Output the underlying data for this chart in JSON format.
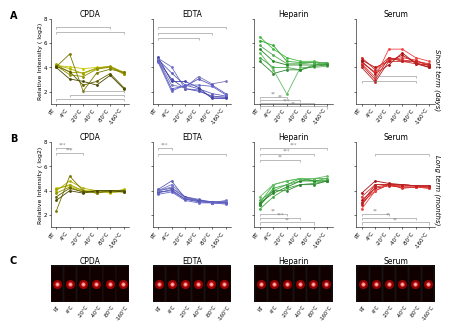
{
  "x_labels": [
    "RT",
    "4°C",
    "-20°C",
    "-40°C",
    "-80°C",
    "-160°C"
  ],
  "x_positions": [
    0,
    1,
    2,
    3,
    4,
    5
  ],
  "panel_titles": [
    "CPDA",
    "EDTA",
    "Heparin",
    "Serum"
  ],
  "ylabel": "Relative Intensity ( log2)",
  "ylim": [
    1,
    8
  ],
  "yticks": [
    2,
    4,
    6,
    8
  ],
  "cpda_A_lines": [
    [
      4.15,
      4.05,
      3.9,
      4.0,
      4.05,
      3.55
    ],
    [
      4.2,
      3.9,
      3.5,
      3.9,
      4.0,
      3.45
    ],
    [
      4.25,
      3.6,
      3.55,
      3.95,
      4.1,
      3.6
    ],
    [
      4.15,
      3.4,
      3.25,
      3.85,
      4.05,
      3.5
    ],
    [
      4.05,
      5.1,
      2.05,
      3.55,
      3.85,
      3.6
    ],
    [
      4.1,
      3.65,
      2.55,
      2.85,
      3.5,
      2.35
    ],
    [
      4.0,
      3.05,
      2.85,
      2.55,
      3.35,
      2.25
    ]
  ],
  "cpda_A_colors": [
    "#c8c800",
    "#b0b000",
    "#a0a000",
    "#909000",
    "#787800",
    "#606000",
    "#484800"
  ],
  "edta_A_lines": [
    [
      4.75,
      4.05,
      2.25,
      2.15,
      1.55,
      1.55
    ],
    [
      4.65,
      3.55,
      2.55,
      2.25,
      1.85,
      1.65
    ],
    [
      4.55,
      3.05,
      2.25,
      2.05,
      1.65,
      1.55
    ],
    [
      4.85,
      2.85,
      2.85,
      2.35,
      1.45,
      1.45
    ],
    [
      4.65,
      2.55,
      2.35,
      3.25,
      2.65,
      2.85
    ],
    [
      4.55,
      2.25,
      2.45,
      3.05,
      2.55,
      1.85
    ],
    [
      4.45,
      2.05,
      2.55,
      2.55,
      2.45,
      1.75
    ]
  ],
  "edta_A_colors": [
    "#7070cc",
    "#6060bb",
    "#5050aa",
    "#4040aa",
    "#7878bb",
    "#5858bb",
    "#6868cc"
  ],
  "heparin_A_lines": [
    [
      6.5,
      5.5,
      4.8,
      4.5,
      4.5,
      4.3
    ],
    [
      6.2,
      5.8,
      4.5,
      4.4,
      4.4,
      4.2
    ],
    [
      5.8,
      5.0,
      4.3,
      4.3,
      4.4,
      4.4
    ],
    [
      5.5,
      4.5,
      4.2,
      4.2,
      4.2,
      4.3
    ],
    [
      5.2,
      3.8,
      1.8,
      4.0,
      4.0,
      4.1
    ],
    [
      4.8,
      4.0,
      4.0,
      3.8,
      4.2,
      4.3
    ],
    [
      4.5,
      3.5,
      3.8,
      3.8,
      4.1,
      4.2
    ]
  ],
  "heparin_A_colors": [
    "#44bb44",
    "#33aa33",
    "#55aa55",
    "#228822",
    "#66bb66",
    "#44aa44",
    "#338833"
  ],
  "serum_A_lines": [
    [
      4.8,
      3.8,
      4.8,
      4.5,
      4.5,
      4.2
    ],
    [
      4.6,
      4.0,
      4.5,
      5.0,
      4.4,
      4.0
    ],
    [
      4.4,
      3.6,
      4.6,
      4.8,
      4.6,
      4.1
    ],
    [
      4.5,
      3.5,
      4.2,
      5.2,
      4.3,
      4.0
    ],
    [
      4.3,
      3.2,
      5.5,
      5.5,
      4.8,
      4.5
    ],
    [
      4.2,
      3.0,
      4.8,
      4.6,
      4.5,
      4.3
    ],
    [
      4.0,
      2.8,
      4.5,
      4.5,
      4.3,
      4.2
    ]
  ],
  "serum_A_colors": [
    "#cc2222",
    "#bb1111",
    "#dd3333",
    "#aa1111",
    "#ee4444",
    "#cc2222",
    "#bb2222"
  ],
  "cpda_B_lines": [
    [
      4.2,
      4.4,
      4.0,
      4.0,
      3.8,
      4.0
    ],
    [
      4.0,
      4.8,
      4.2,
      4.0,
      3.9,
      4.1
    ],
    [
      4.1,
      4.5,
      4.0,
      3.8,
      4.0,
      4.0
    ],
    [
      3.8,
      4.3,
      3.9,
      3.9,
      3.9,
      3.9
    ],
    [
      2.3,
      5.2,
      4.0,
      3.8,
      4.0,
      4.0
    ],
    [
      3.5,
      4.2,
      3.9,
      4.0,
      4.0,
      4.0
    ],
    [
      3.2,
      4.0,
      3.8,
      4.0,
      4.0,
      3.9
    ]
  ],
  "cpda_B_colors": [
    "#c8c800",
    "#b0b000",
    "#a0a000",
    "#909000",
    "#787800",
    "#606000",
    "#484800"
  ],
  "edta_B_lines": [
    [
      4.0,
      4.5,
      3.5,
      3.3,
      3.0,
      3.2
    ],
    [
      4.1,
      4.8,
      3.4,
      3.2,
      3.1,
      3.1
    ],
    [
      4.0,
      4.2,
      3.5,
      3.2,
      3.0,
      3.0
    ],
    [
      3.9,
      4.0,
      3.3,
      3.1,
      3.0,
      3.0
    ],
    [
      4.0,
      4.3,
      3.4,
      3.2,
      3.0,
      3.1
    ],
    [
      3.8,
      4.1,
      3.3,
      3.2,
      3.1,
      3.0
    ],
    [
      3.7,
      3.9,
      3.2,
      3.0,
      3.0,
      2.9
    ]
  ],
  "edta_B_colors": [
    "#7070cc",
    "#6060bb",
    "#5050aa",
    "#4040aa",
    "#7878bb",
    "#5858bb",
    "#6868cc"
  ],
  "heparin_B_lines": [
    [
      3.0,
      4.5,
      4.8,
      5.0,
      4.8,
      5.0
    ],
    [
      2.8,
      4.2,
      4.5,
      5.0,
      4.8,
      4.8
    ],
    [
      3.2,
      4.0,
      4.5,
      4.8,
      5.0,
      5.0
    ],
    [
      3.0,
      3.8,
      4.3,
      4.8,
      4.8,
      4.8
    ],
    [
      3.5,
      4.5,
      4.8,
      5.0,
      5.0,
      5.2
    ],
    [
      2.5,
      3.5,
      4.2,
      4.5,
      4.6,
      4.8
    ],
    [
      2.8,
      4.0,
      4.0,
      4.5,
      4.5,
      4.8
    ]
  ],
  "heparin_B_colors": [
    "#44bb44",
    "#33aa33",
    "#55aa55",
    "#228822",
    "#66bb66",
    "#44aa44",
    "#338833"
  ],
  "serum_B_lines": [
    [
      3.0,
      4.0,
      4.5,
      4.2,
      4.3,
      4.2
    ],
    [
      3.2,
      4.2,
      4.4,
      4.3,
      4.3,
      4.3
    ],
    [
      3.5,
      4.5,
      4.5,
      4.5,
      4.4,
      4.4
    ],
    [
      3.8,
      4.8,
      4.6,
      4.5,
      4.4,
      4.4
    ],
    [
      2.5,
      4.0,
      4.5,
      4.3,
      4.3,
      4.2
    ],
    [
      2.8,
      4.3,
      4.5,
      4.4,
      4.4,
      4.3
    ],
    [
      3.0,
      4.5,
      4.5,
      4.5,
      4.4,
      4.4
    ]
  ],
  "serum_B_colors": [
    "#cc2222",
    "#bb1111",
    "#dd3333",
    "#aa1111",
    "#ee4444",
    "#cc2222",
    "#bb2222"
  ],
  "short_term_label": "Short term (days)",
  "long_term_label": "Long term (months)",
  "row_A_label": "A",
  "row_B_label": "B",
  "row_C_label": "C",
  "bg_color": "#ffffff",
  "marker_size": 2.0,
  "line_width": 0.6,
  "font_size_title": 5.5,
  "font_size_tick": 4.0,
  "font_size_label": 4.5,
  "font_size_sig": 3.5,
  "font_size_rowlabel": 5.0,
  "font_size_abclabel": 7.0
}
